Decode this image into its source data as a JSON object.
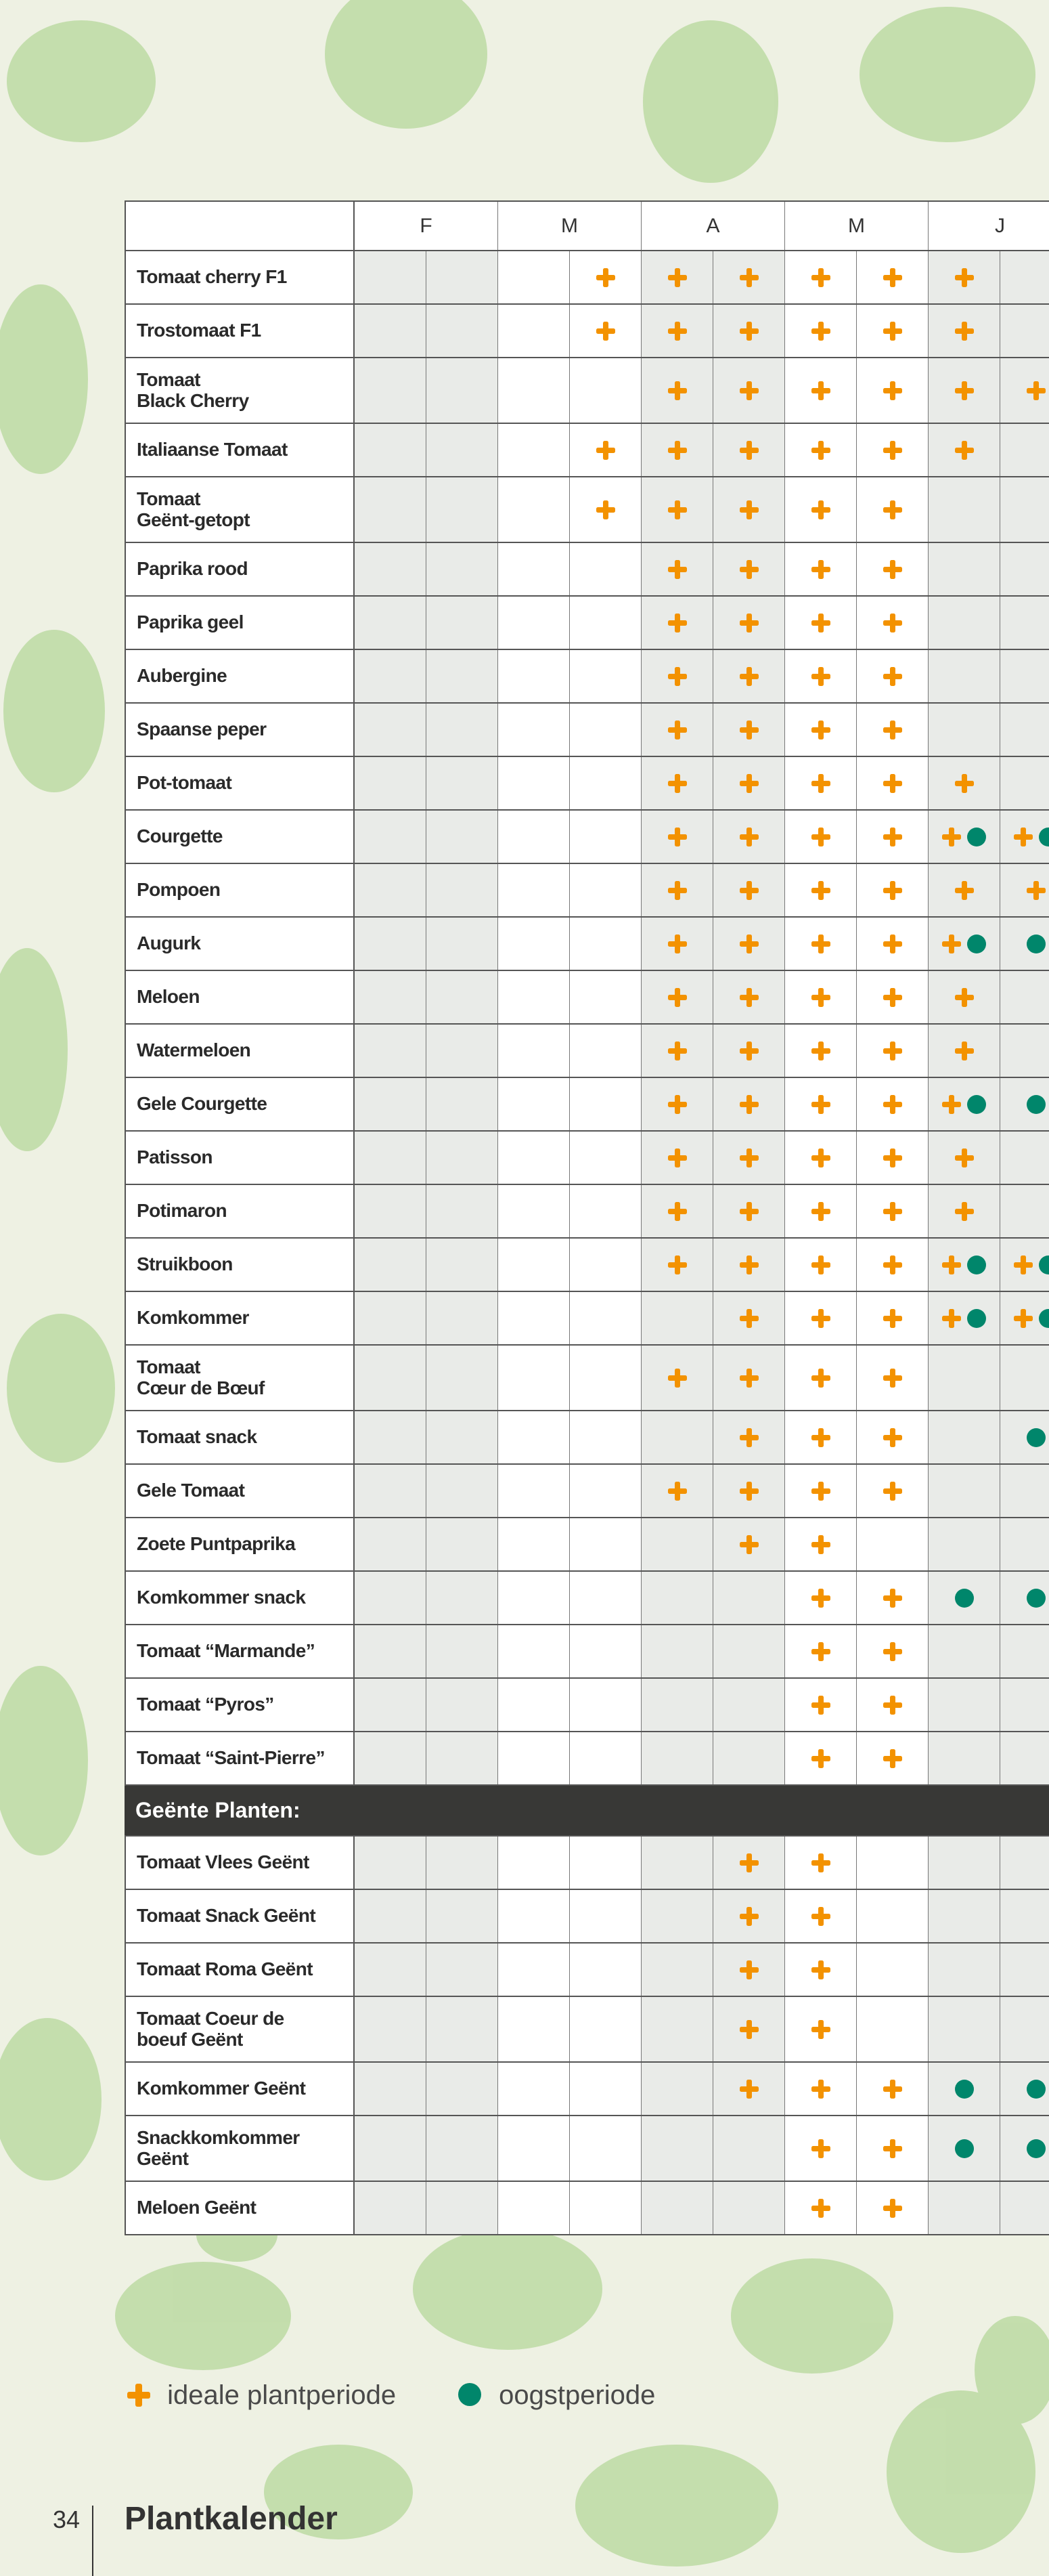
{
  "table": {
    "months": [
      "F",
      "M",
      "A",
      "M",
      "J"
    ],
    "rows": [
      {
        "label": "Tomaat cherry F1",
        "cells": [
          null,
          null,
          null,
          "plant",
          "plant",
          "plant",
          "plant",
          "plant",
          "plant",
          null
        ]
      },
      {
        "label": "Trostomaat F1",
        "cells": [
          null,
          null,
          null,
          "plant",
          "plant",
          "plant",
          "plant",
          "plant",
          "plant",
          null
        ]
      },
      {
        "label": "Tomaat\nBlack Cherry",
        "cells": [
          null,
          null,
          null,
          null,
          "plant",
          "plant",
          "plant",
          "plant",
          "plant",
          "plant"
        ]
      },
      {
        "label": "Italiaanse Tomaat",
        "cells": [
          null,
          null,
          null,
          "plant",
          "plant",
          "plant",
          "plant",
          "plant",
          "plant",
          null
        ]
      },
      {
        "label": "Tomaat\nGeënt-getopt",
        "cells": [
          null,
          null,
          null,
          "plant",
          "plant",
          "plant",
          "plant",
          "plant",
          null,
          null
        ]
      },
      {
        "label": "Paprika rood",
        "cells": [
          null,
          null,
          null,
          null,
          "plant",
          "plant",
          "plant",
          "plant",
          null,
          null
        ]
      },
      {
        "label": "Paprika geel",
        "cells": [
          null,
          null,
          null,
          null,
          "plant",
          "plant",
          "plant",
          "plant",
          null,
          null
        ]
      },
      {
        "label": "Aubergine",
        "cells": [
          null,
          null,
          null,
          null,
          "plant",
          "plant",
          "plant",
          "plant",
          null,
          null
        ]
      },
      {
        "label": "Spaanse peper",
        "cells": [
          null,
          null,
          null,
          null,
          "plant",
          "plant",
          "plant",
          "plant",
          null,
          null
        ]
      },
      {
        "label": "Pot-tomaat",
        "cells": [
          null,
          null,
          null,
          null,
          "plant",
          "plant",
          "plant",
          "plant",
          "plant",
          null
        ]
      },
      {
        "label": "Courgette",
        "cells": [
          null,
          null,
          null,
          null,
          "plant",
          "plant",
          "plant",
          "plant",
          "plant harvest",
          "plant harvest"
        ]
      },
      {
        "label": "Pompoen",
        "cells": [
          null,
          null,
          null,
          null,
          "plant",
          "plant",
          "plant",
          "plant",
          "plant",
          "plant"
        ]
      },
      {
        "label": "Augurk",
        "cells": [
          null,
          null,
          null,
          null,
          "plant",
          "plant",
          "plant",
          "plant",
          "plant harvest",
          "harvest"
        ]
      },
      {
        "label": "Meloen",
        "cells": [
          null,
          null,
          null,
          null,
          "plant",
          "plant",
          "plant",
          "plant",
          "plant",
          null
        ]
      },
      {
        "label": "Watermeloen",
        "cells": [
          null,
          null,
          null,
          null,
          "plant",
          "plant",
          "plant",
          "plant",
          "plant",
          null
        ]
      },
      {
        "label": "Gele Courgette",
        "cells": [
          null,
          null,
          null,
          null,
          "plant",
          "plant",
          "plant",
          "plant",
          "plant harvest",
          "harvest"
        ]
      },
      {
        "label": "Patisson",
        "cells": [
          null,
          null,
          null,
          null,
          "plant",
          "plant",
          "plant",
          "plant",
          "plant",
          null
        ]
      },
      {
        "label": "Potimaron",
        "cells": [
          null,
          null,
          null,
          null,
          "plant",
          "plant",
          "plant",
          "plant",
          "plant",
          null
        ]
      },
      {
        "label": "Struikboon",
        "cells": [
          null,
          null,
          null,
          null,
          "plant",
          "plant",
          "plant",
          "plant",
          "plant harvest",
          "plant harvest"
        ]
      },
      {
        "label": "Komkommer",
        "cells": [
          null,
          null,
          null,
          null,
          null,
          "plant",
          "plant",
          "plant",
          "plant harvest",
          "plant harvest"
        ]
      },
      {
        "label": "Tomaat\nCœur de Bœuf",
        "cells": [
          null,
          null,
          null,
          null,
          "plant",
          "plant",
          "plant",
          "plant",
          null,
          null
        ]
      },
      {
        "label": "Tomaat snack",
        "cells": [
          null,
          null,
          null,
          null,
          null,
          "plant",
          "plant",
          "plant",
          null,
          "harvest"
        ]
      },
      {
        "label": "Gele Tomaat",
        "cells": [
          null,
          null,
          null,
          null,
          "plant",
          "plant",
          "plant",
          "plant",
          null,
          null
        ]
      },
      {
        "label": "Zoete Puntpaprika",
        "cells": [
          null,
          null,
          null,
          null,
          null,
          "plant",
          "plant",
          null,
          null,
          null
        ]
      },
      {
        "label": "Komkommer snack",
        "cells": [
          null,
          null,
          null,
          null,
          null,
          null,
          "plant",
          "plant",
          "harvest",
          "harvest"
        ]
      },
      {
        "label": "Tomaat “Marmande”",
        "cells": [
          null,
          null,
          null,
          null,
          null,
          null,
          "plant",
          "plant",
          null,
          null
        ]
      },
      {
        "label": "Tomaat “Pyros”",
        "cells": [
          null,
          null,
          null,
          null,
          null,
          null,
          "plant",
          "plant",
          null,
          null
        ]
      },
      {
        "label": "Tomaat “Saint-Pierre”",
        "cells": [
          null,
          null,
          null,
          null,
          null,
          null,
          "plant",
          "plant",
          null,
          null
        ]
      }
    ],
    "section": "Geënte Planten:",
    "grafted_rows": [
      {
        "label": "Tomaat Vlees Geënt",
        "cells": [
          null,
          null,
          null,
          null,
          null,
          "plant",
          "plant",
          null,
          null,
          null
        ]
      },
      {
        "label": "Tomaat Snack Geënt",
        "cells": [
          null,
          null,
          null,
          null,
          null,
          "plant",
          "plant",
          null,
          null,
          null
        ]
      },
      {
        "label": "Tomaat Roma Geënt",
        "cells": [
          null,
          null,
          null,
          null,
          null,
          "plant",
          "plant",
          null,
          null,
          null
        ]
      },
      {
        "label": "Tomaat Coeur de\nboeuf Geënt",
        "cells": [
          null,
          null,
          null,
          null,
          null,
          "plant",
          "plant",
          null,
          null,
          null
        ]
      },
      {
        "label": "Komkommer Geënt",
        "cells": [
          null,
          null,
          null,
          null,
          null,
          "plant",
          "plant",
          "plant",
          "harvest",
          "harvest"
        ]
      },
      {
        "label": "Snackkomkommer\nGeënt",
        "cells": [
          null,
          null,
          null,
          null,
          null,
          null,
          "plant",
          "plant",
          "harvest",
          "harvest"
        ]
      },
      {
        "label": "Meloen Geënt",
        "cells": [
          null,
          null,
          null,
          null,
          null,
          null,
          "plant",
          "plant",
          null,
          null
        ]
      }
    ]
  },
  "legend": {
    "plant": "ideale plantperiode",
    "harvest": "oogstperiode"
  },
  "footer": {
    "page": "34",
    "title": "Plantkalender"
  }
}
